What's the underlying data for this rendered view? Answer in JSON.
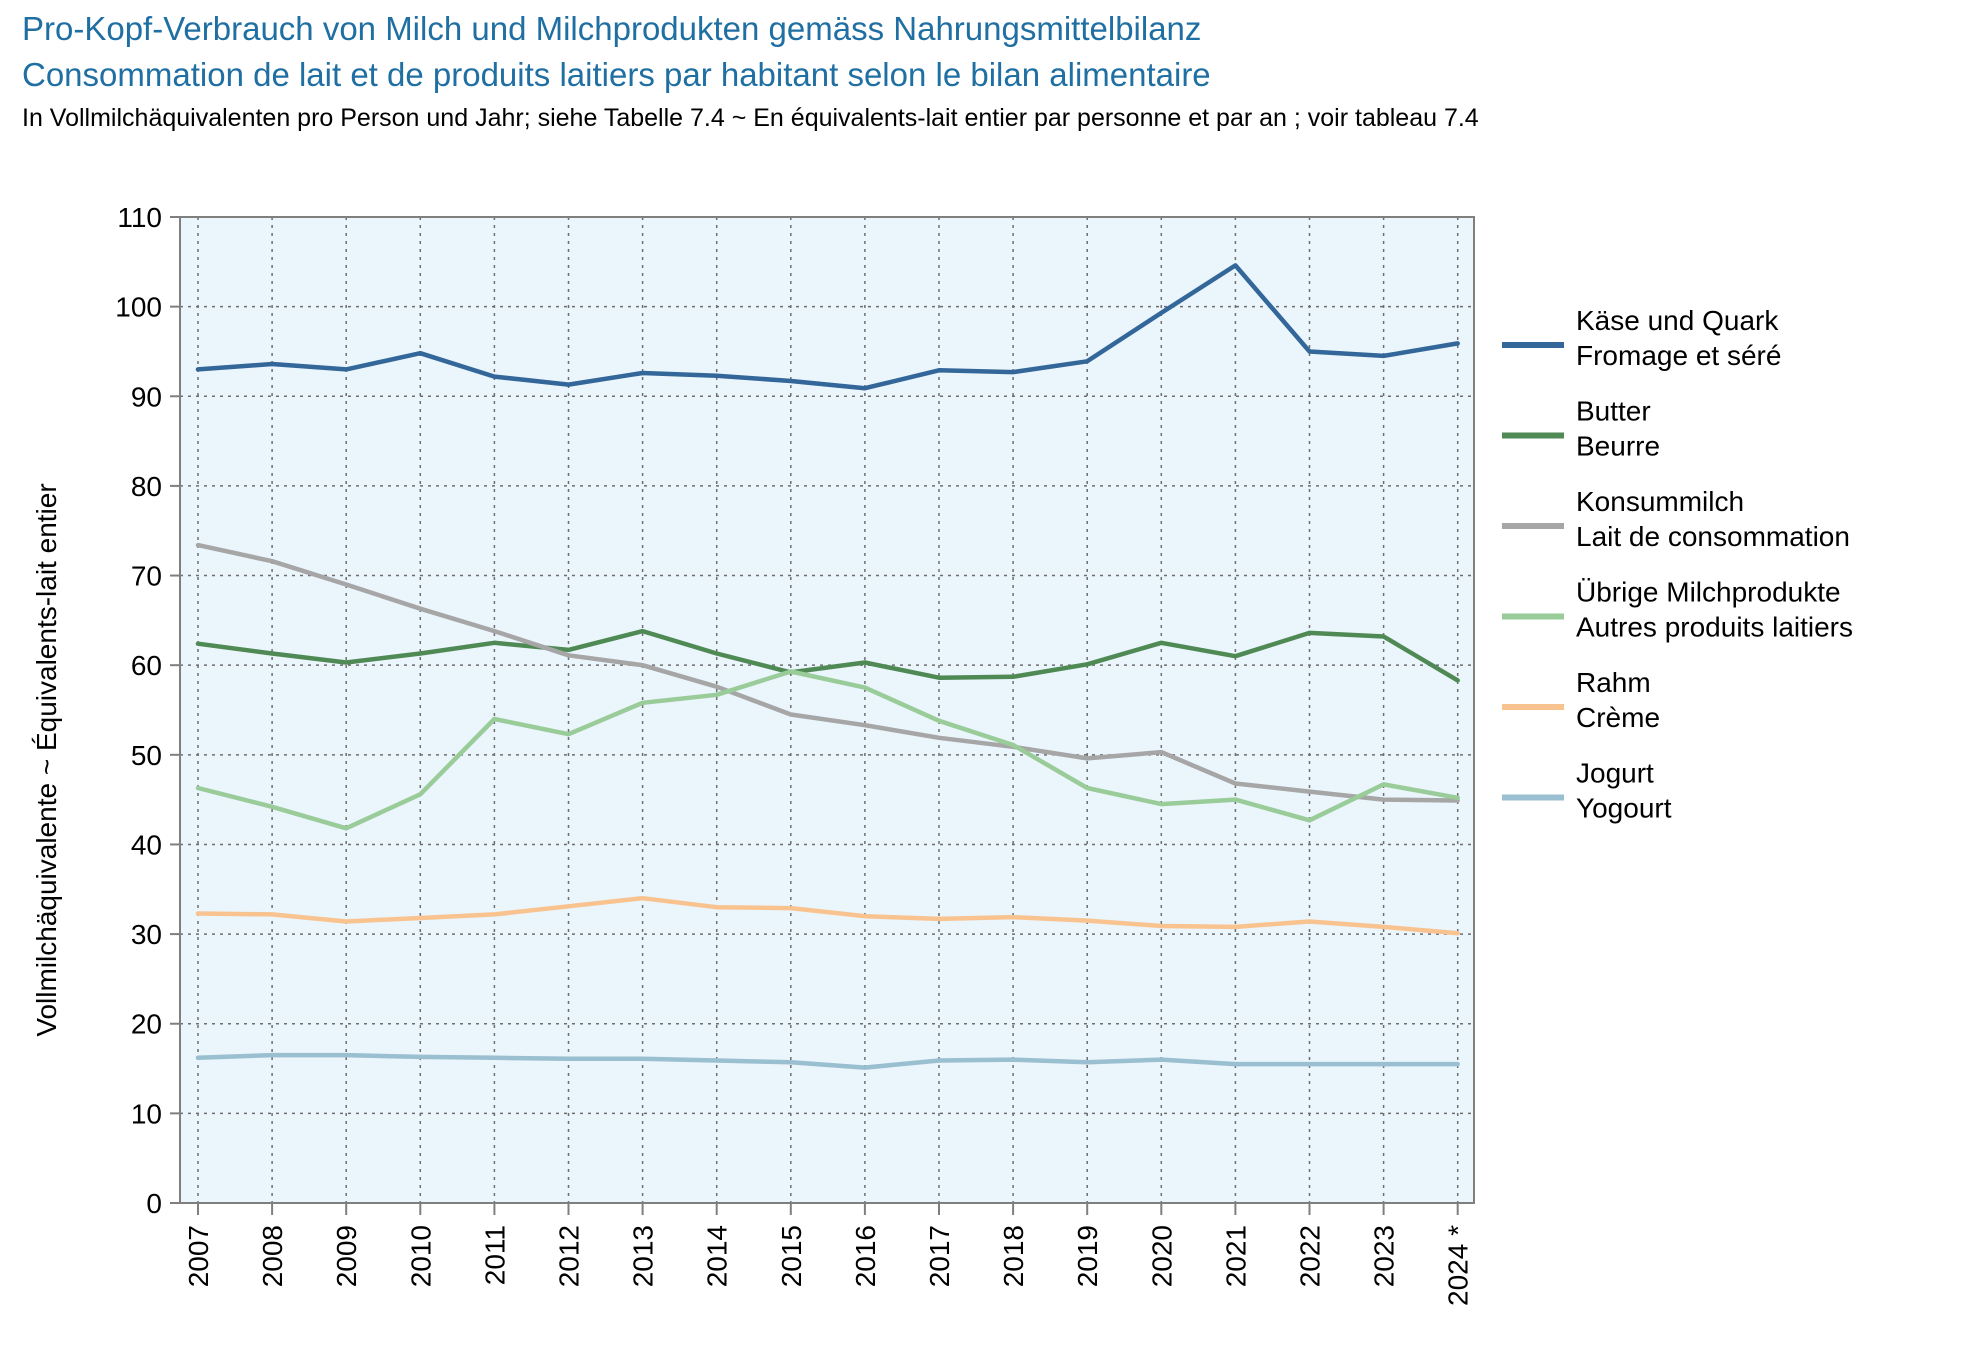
{
  "title": "Pro-Kopf-Verbrauch von Milch und Milchprodukten gemäss Nahrungsmittelbilanz",
  "title_fr": "Consommation de lait et de produits laitiers par habitant selon le bilan alimentaire",
  "subtitle": "In Vollmilchäquivalenten pro Person und Jahr; siehe Tabelle 7.4   ~   En équivalents-lait entier par personne et par an ; voir tableau 7.4",
  "chart_data": {
    "type": "line",
    "title": "Pro-Kopf-Verbrauch von Milch und Milchprodukten gemäss Nahrungsmittelbilanz",
    "ylabel": "Vollmilchäquivalente   ~   Équivalents-lait entier",
    "xlabel": "",
    "ylim": [
      0,
      110
    ],
    "yticks": [
      0,
      10,
      20,
      30,
      40,
      50,
      60,
      70,
      80,
      90,
      100,
      110
    ],
    "categories": [
      "2007",
      "2008",
      "2009",
      "2010",
      "2011",
      "2012",
      "2013",
      "2014",
      "2015",
      "2016",
      "2017",
      "2018",
      "2019",
      "2020",
      "2021",
      "2022",
      "2023",
      "2024 *"
    ],
    "grid": true,
    "legend_position": "right",
    "plot_background": "#eaf5fc",
    "series": [
      {
        "name": "Käse und Quark",
        "name_fr": "Fromage et séré",
        "color": "#336699",
        "values": [
          93.0,
          93.6,
          93.0,
          94.8,
          92.2,
          91.3,
          92.6,
          92.3,
          91.7,
          90.9,
          92.9,
          92.7,
          93.9,
          99.3,
          104.6,
          95.0,
          94.5,
          95.9
        ]
      },
      {
        "name": "Butter",
        "name_fr": "Beurre",
        "color": "#4f8a55",
        "values": [
          62.4,
          61.3,
          60.3,
          61.3,
          62.5,
          61.7,
          63.8,
          61.3,
          59.2,
          60.3,
          58.6,
          58.7,
          60.1,
          62.5,
          61.0,
          63.6,
          63.2,
          58.3
        ]
      },
      {
        "name": "Konsummilch",
        "name_fr": "Lait de consommation",
        "color": "#a6a6a6",
        "values": [
          73.4,
          71.6,
          69.0,
          66.3,
          63.8,
          61.1,
          60.0,
          57.6,
          54.5,
          53.3,
          51.9,
          50.9,
          49.6,
          50.3,
          46.8,
          45.9,
          45.0,
          44.9
        ]
      },
      {
        "name": "Übrige Milchprodukte",
        "name_fr": "Autres produits laitiers",
        "color": "#99cc99",
        "values": [
          46.3,
          44.2,
          41.8,
          45.6,
          54.0,
          52.3,
          55.8,
          56.7,
          59.3,
          57.5,
          53.8,
          51.1,
          46.3,
          44.5,
          45.0,
          42.7,
          46.7,
          45.2
        ]
      },
      {
        "name": "Rahm",
        "name_fr": "Crème",
        "color": "#f9c38f",
        "values": [
          32.3,
          32.2,
          31.4,
          31.8,
          32.2,
          33.1,
          34.0,
          33.0,
          32.9,
          32.0,
          31.7,
          31.9,
          31.5,
          30.9,
          30.8,
          31.4,
          30.8,
          30.1
        ]
      },
      {
        "name": "Jogurt",
        "name_fr": "Yogourt",
        "color": "#99bfd0",
        "values": [
          16.2,
          16.5,
          16.5,
          16.3,
          16.2,
          16.1,
          16.1,
          15.9,
          15.7,
          15.1,
          15.9,
          16.0,
          15.7,
          16.0,
          15.5,
          15.5,
          15.5,
          15.5
        ]
      }
    ]
  }
}
